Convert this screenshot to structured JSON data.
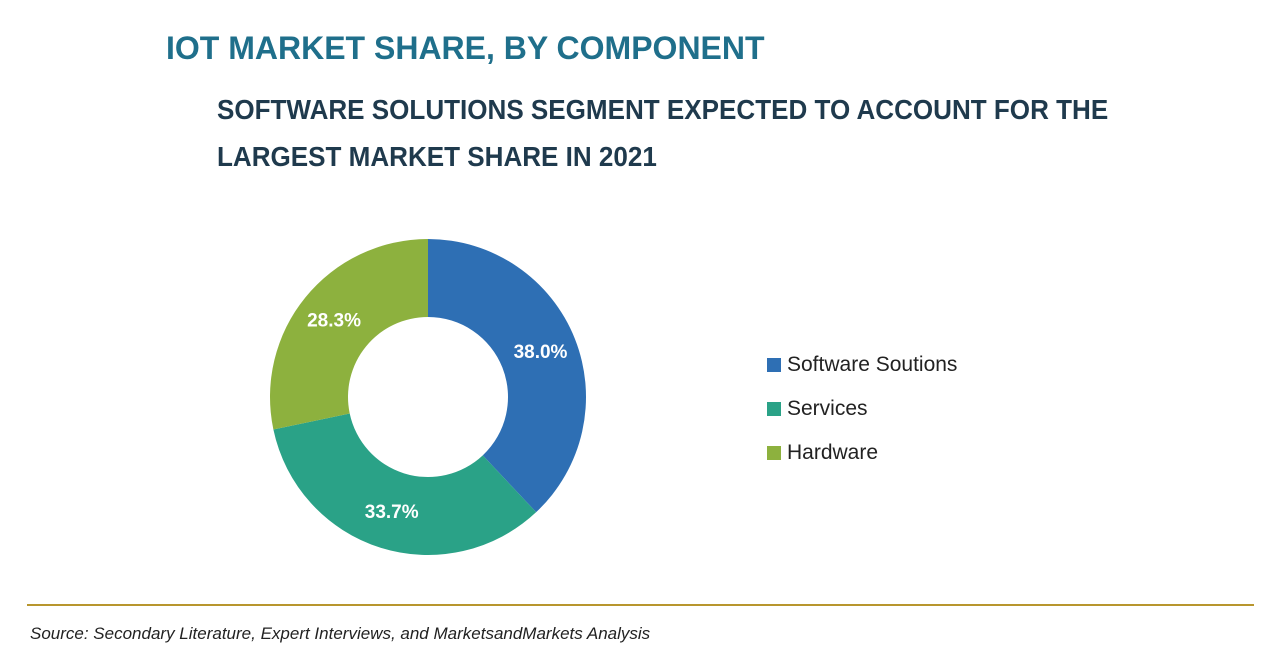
{
  "chart_data": {
    "type": "pie",
    "title": "IOT MARKET SHARE, BY COMPONENT",
    "subtitle": "SOFTWARE SOLUTIONS SEGMENT EXPECTED TO ACCOUNT FOR THE LARGEST MARKET SHARE IN 2021",
    "categories": [
      "Software Soutions",
      "Services",
      "Hardware"
    ],
    "values": [
      38.0,
      33.7,
      28.3
    ],
    "data_labels": [
      "38.0%",
      "33.7%",
      "28.3%"
    ],
    "colors": [
      "#2e6fb4",
      "#2aa287",
      "#8db13e"
    ],
    "label_color": "#ffffff",
    "donut": true,
    "start_angle_deg": 0,
    "direction": "clockwise",
    "legend_position": "right"
  },
  "footer": {
    "source": "Source: Secondary Literature, Expert Interviews, and MarketsandMarkets Analysis",
    "rule_color": "#b8962e"
  }
}
